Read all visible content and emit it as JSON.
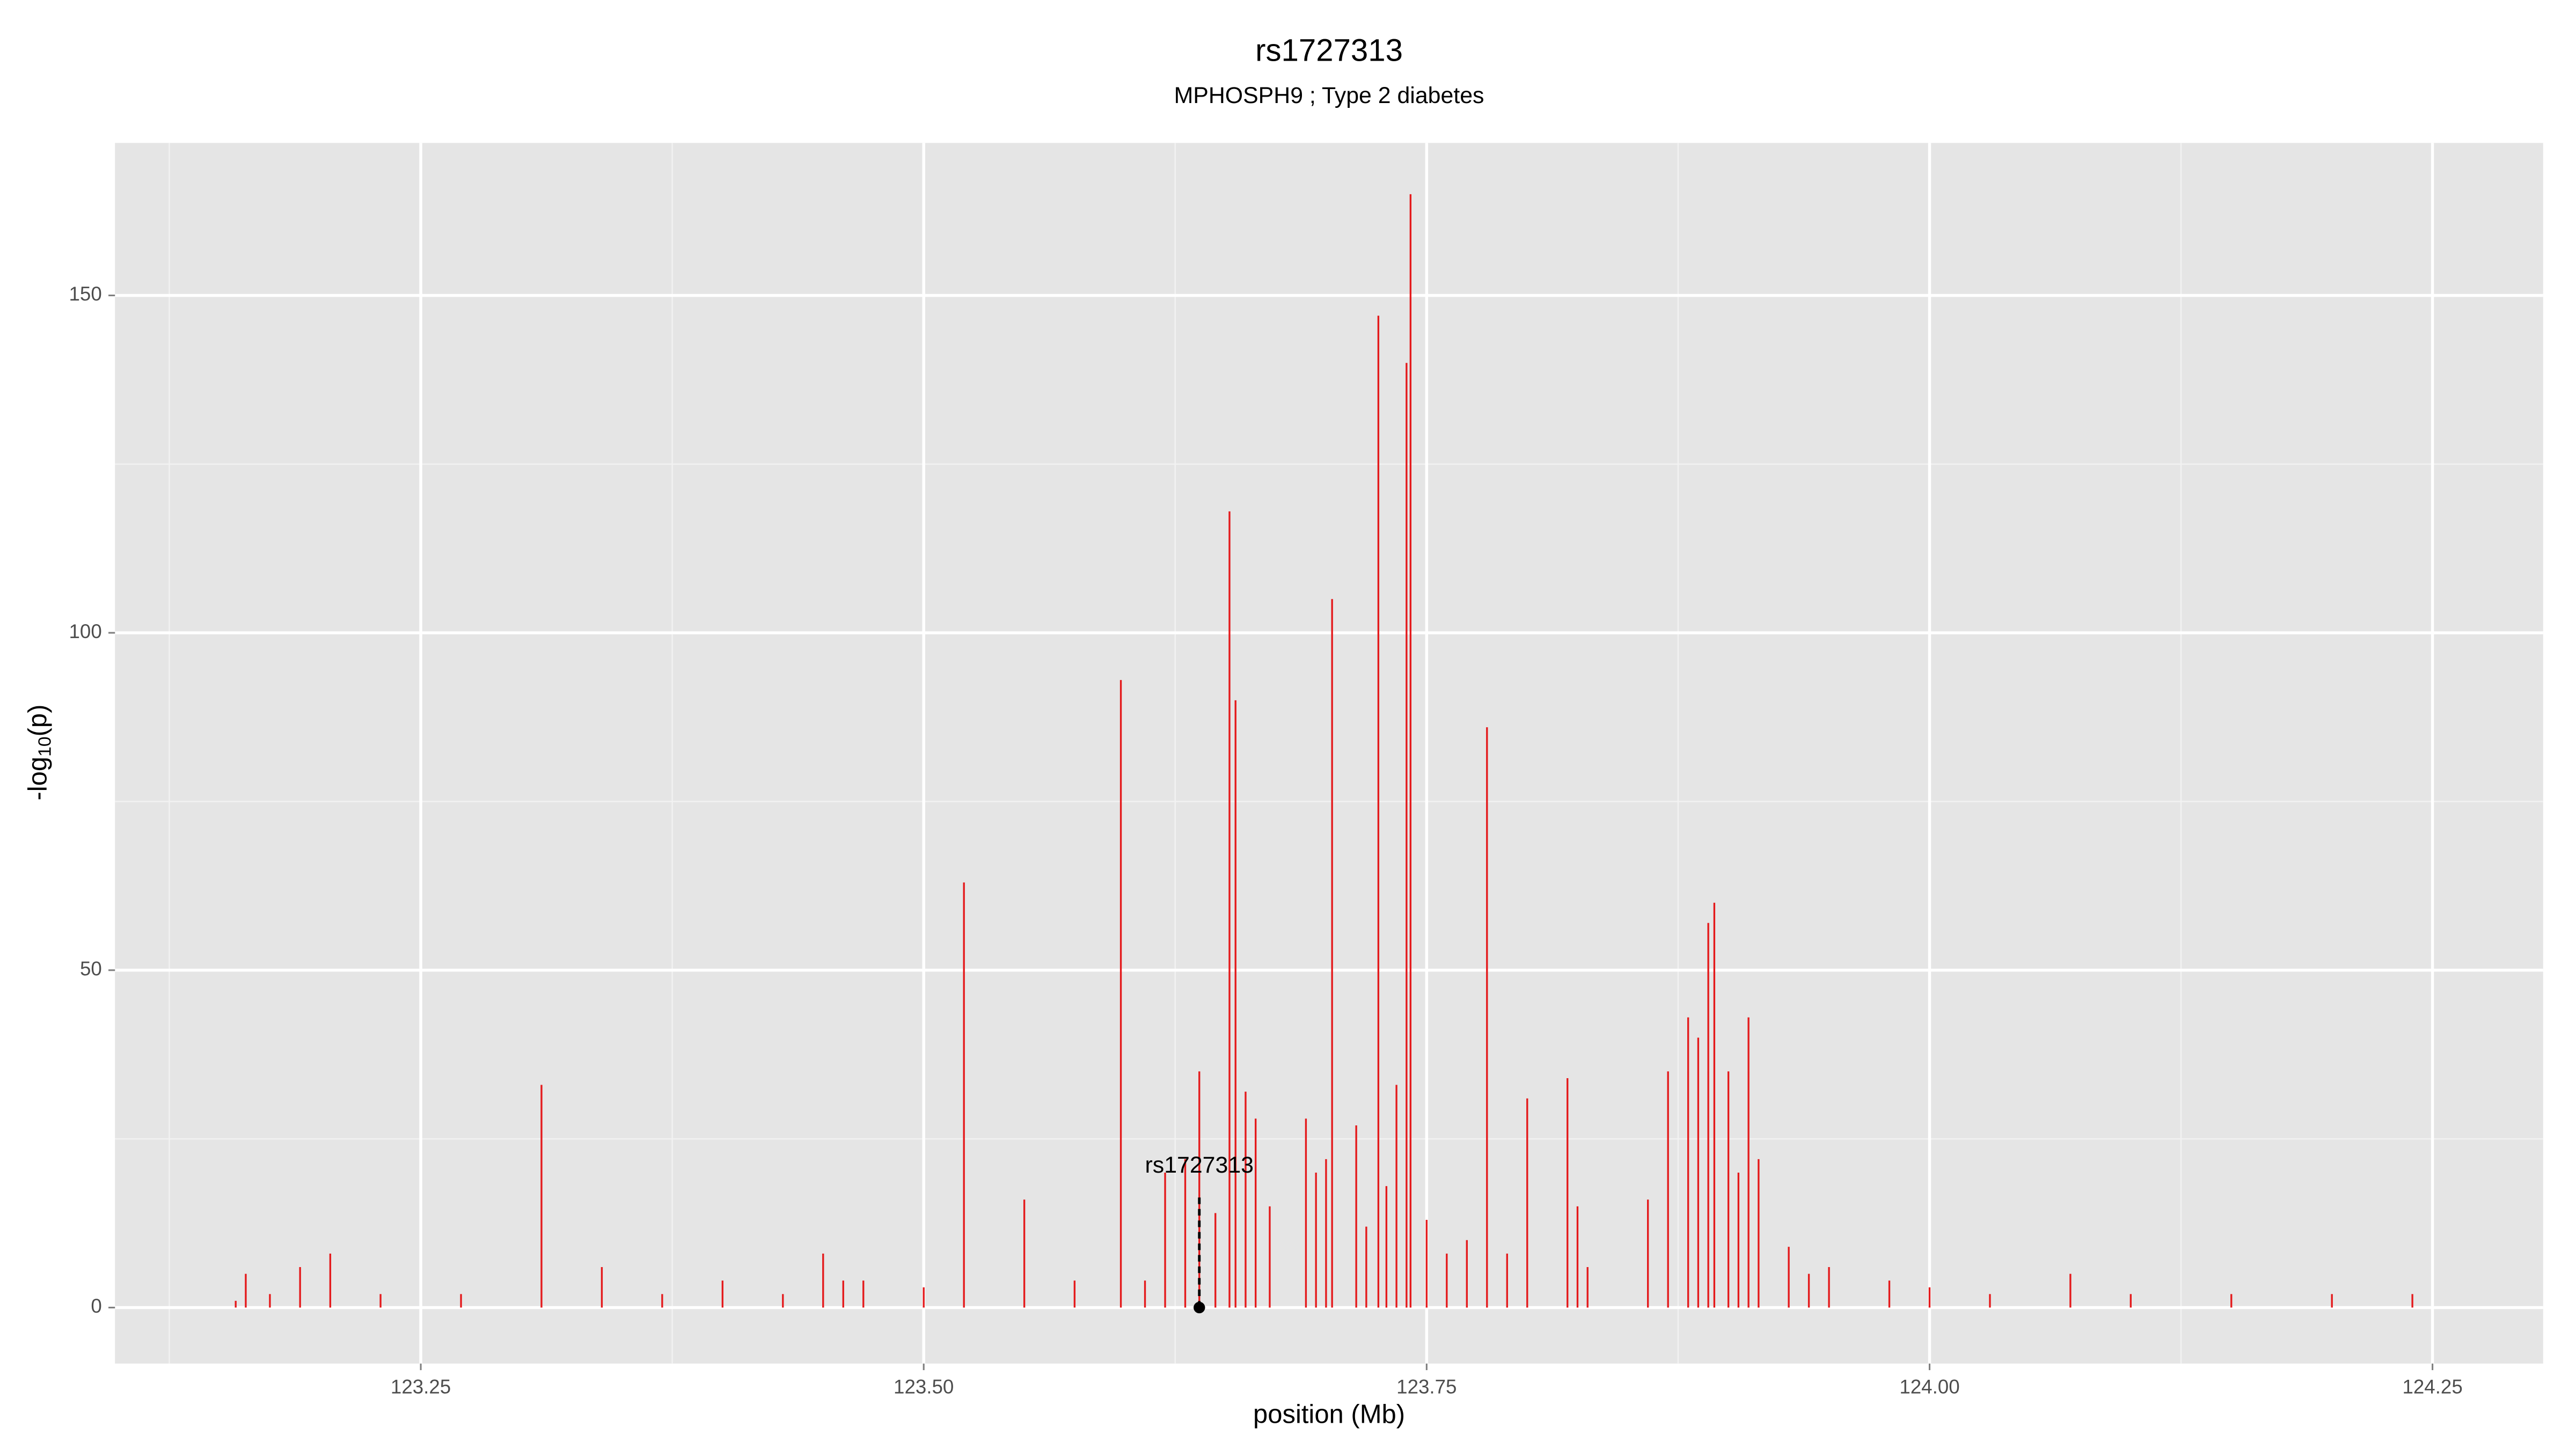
{
  "chart_data": {
    "type": "spike",
    "title": "rs1727313",
    "subtitle": "MPHOSPH9 ; Type 2 diabetes",
    "xlabel": "position (Mb)",
    "ylabel": [
      "-log",
      "10",
      "(p)"
    ],
    "xlim": [
      123.098,
      124.305
    ],
    "ylim": [
      -8.3,
      172.6
    ],
    "xticks": [
      123.25,
      {
        "value": 123.5,
        "label": "123.50"
      },
      123.75,
      {
        "value": 124,
        "label": "124.00"
      },
      124.25
    ],
    "yticks": [
      0,
      50,
      100,
      150
    ],
    "x_minor_grid": [
      123.125,
      123.375,
      123.625,
      123.875,
      124.125
    ],
    "y_minor_grid": [
      25,
      75,
      125
    ],
    "grid": true,
    "color": "#e41a1c",
    "x": [
      123.158,
      123.163,
      123.175,
      123.19,
      123.205,
      123.23,
      123.27,
      123.31,
      123.34,
      123.37,
      123.4,
      123.43,
      123.45,
      123.46,
      123.47,
      123.5,
      123.52,
      123.55,
      123.575,
      123.598,
      123.61,
      123.62,
      123.63,
      123.637,
      123.645,
      123.652,
      123.655,
      123.66,
      123.665,
      123.672,
      123.69,
      123.695,
      123.7,
      123.703,
      123.715,
      123.72,
      123.726,
      123.73,
      123.735,
      123.74,
      123.742,
      123.75,
      123.76,
      123.77,
      123.78,
      123.79,
      123.8,
      123.82,
      123.825,
      123.83,
      123.86,
      123.87,
      123.88,
      123.885,
      123.89,
      123.893,
      123.9,
      123.905,
      123.91,
      123.915,
      123.93,
      123.94,
      123.95,
      123.98,
      124.0,
      124.03,
      124.07,
      124.1,
      124.15,
      124.2,
      124.24
    ],
    "values": [
      1,
      5,
      2,
      6,
      8,
      2,
      2,
      33,
      6,
      2,
      4,
      2,
      8,
      4,
      4,
      3,
      63,
      16,
      4,
      93,
      4,
      20,
      22,
      35,
      14,
      118,
      90,
      32,
      28,
      15,
      28,
      20,
      22,
      105,
      27,
      12,
      147,
      18,
      33,
      140,
      165,
      13,
      8,
      10,
      86,
      8,
      31,
      34,
      15,
      6,
      16,
      35,
      43,
      40,
      57,
      60,
      35,
      20,
      43,
      22,
      9,
      5,
      6,
      4,
      3,
      2,
      5,
      2,
      2,
      2,
      2
    ],
    "annotation": {
      "label": "rs1727313",
      "x": 123.637,
      "y": 17,
      "marker_y": 0
    }
  }
}
